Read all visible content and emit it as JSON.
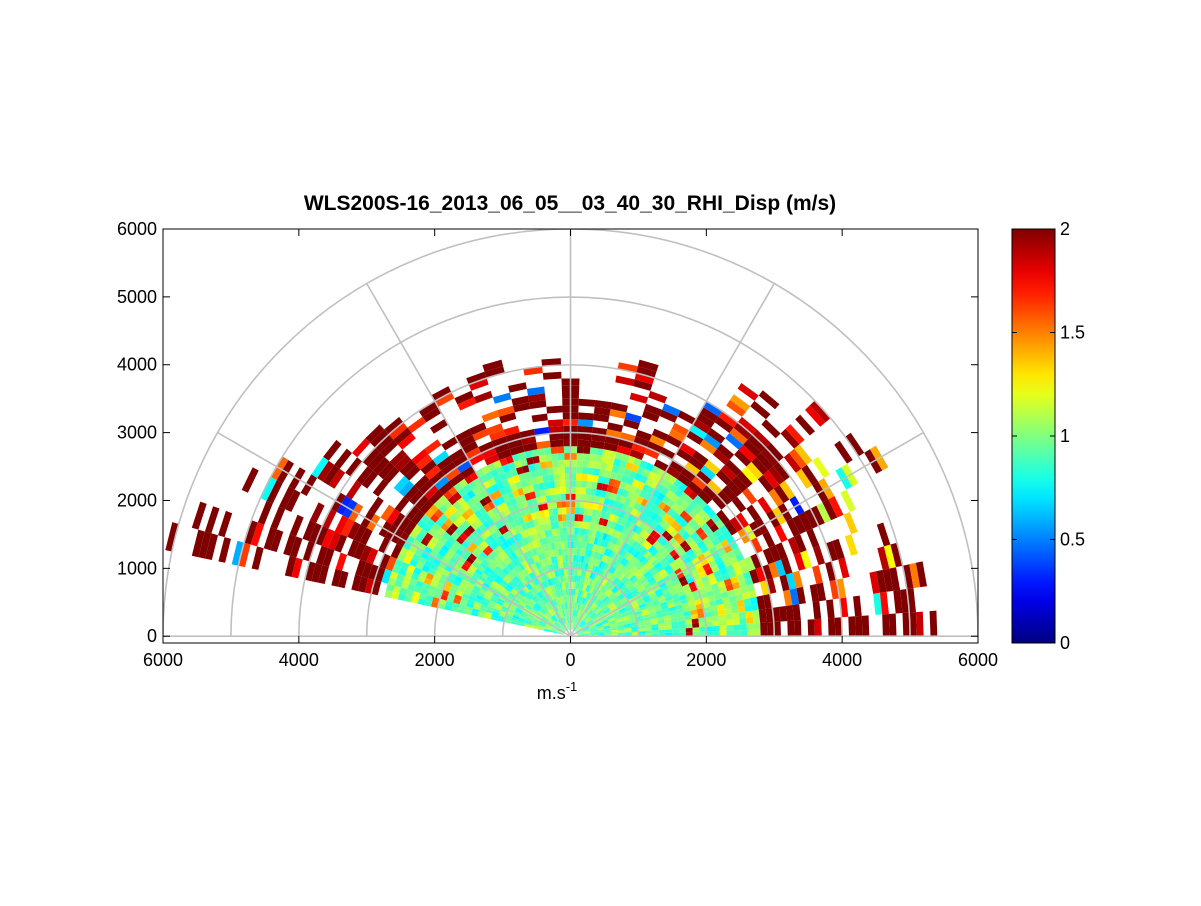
{
  "chart_data": {
    "type": "heatmap",
    "title": "WLS200S-16_2013_06_05__03_40_30_RHI_Disp (m/s)",
    "xlabel": "m.s",
    "xlabel_superscript": "-1",
    "ylabel": "",
    "xlim": [
      -6000,
      6000
    ],
    "ylim": [
      -100,
      6000
    ],
    "x_ticks": [
      -6000,
      -4000,
      -2000,
      0,
      2000,
      4000,
      6000
    ],
    "x_tick_labels": [
      "6000",
      "4000",
      "2000",
      "0",
      "2000",
      "4000",
      "6000"
    ],
    "y_ticks": [
      0,
      1000,
      2000,
      3000,
      4000,
      5000,
      6000
    ],
    "y_tick_labels": [
      "0",
      "1000",
      "2000",
      "3000",
      "4000",
      "5000",
      "6000"
    ],
    "polar_grid": {
      "range_rings": [
        1000,
        2000,
        3000,
        4000,
        5000,
        6000
      ],
      "spokes_deg": [
        0,
        30,
        60,
        90,
        120,
        150,
        180
      ]
    },
    "scan": {
      "range_gate_m": 100,
      "elevation_step_deg": 4,
      "elevation_range_deg": [
        2,
        166
      ],
      "value_unit": "m/s"
    },
    "colorbar": {
      "colormap": "jet",
      "range": [
        0,
        2
      ],
      "ticks": [
        0,
        0.5,
        1,
        1.5,
        2
      ],
      "tick_labels": [
        "0",
        "0.5",
        "1",
        "1.5",
        "2"
      ]
    },
    "coverage_profile": {
      "description_levels": [
        {
          "elevation_deg": 4,
          "max_range_m": 5300,
          "typical_value": 2.0
        },
        {
          "elevation_deg": 16,
          "max_range_m": 5200,
          "typical_value": 1.3
        },
        {
          "elevation_deg": 30,
          "max_range_m": 5000,
          "typical_value": 1.4
        },
        {
          "elevation_deg": 45,
          "max_range_m": 4700,
          "typical_value": 1.5
        },
        {
          "elevation_deg": 60,
          "max_range_m": 4100,
          "typical_value": 1.7
        },
        {
          "elevation_deg": 90,
          "max_range_m": 3900,
          "typical_value": 1.8
        },
        {
          "elevation_deg": 120,
          "max_range_m": 4200,
          "typical_value": 1.8
        },
        {
          "elevation_deg": 135,
          "max_range_m": 4100,
          "typical_value": 1.9
        },
        {
          "elevation_deg": 150,
          "max_range_m": 4700,
          "typical_value": 1.8
        },
        {
          "elevation_deg": 166,
          "max_range_m": 6000,
          "typical_value": 1.9
        }
      ],
      "inner_uniform_value": 0.95,
      "inner_uniform_range_m": 2800
    },
    "colors": {
      "grid": "#c0c0c0",
      "axes": "#000000"
    }
  }
}
